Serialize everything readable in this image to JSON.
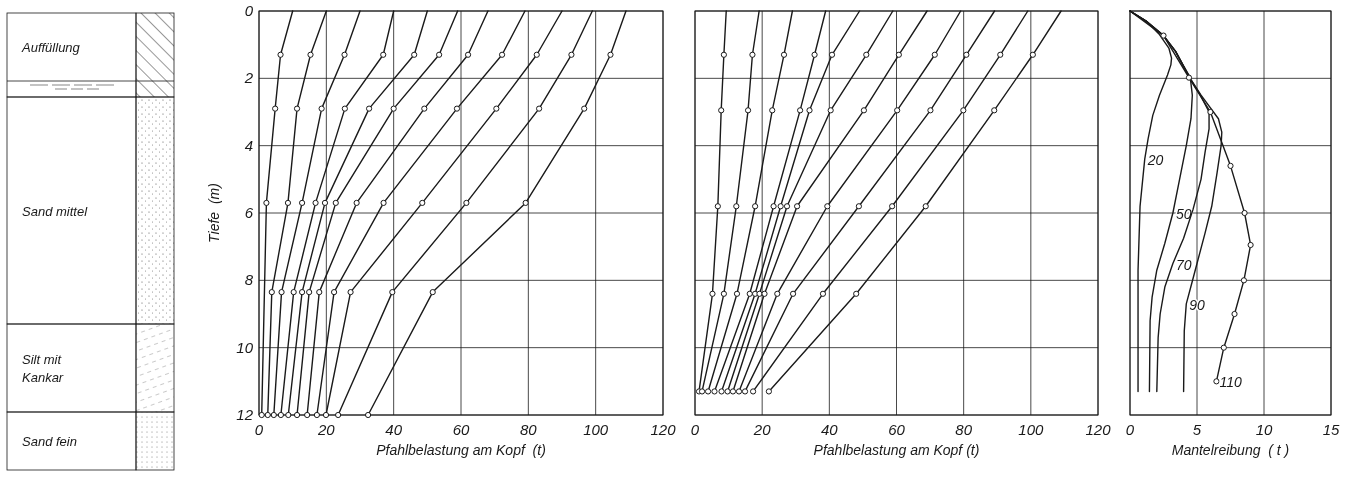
{
  "chart_data": [
    {
      "type": "other",
      "annotations": [
        "Auffüllung",
        "Sand mittel",
        "Silt mit Kankar",
        "Sand fein"
      ]
    },
    {
      "type": "line",
      "xlabel": "Pfahlbelastung am Kopf  (t)",
      "ylabel": "Tiefe  (m)",
      "xlim": [
        0,
        120
      ],
      "ylim": [
        12,
        0
      ],
      "xticks": [
        0,
        20,
        40,
        60,
        80,
        100,
        120
      ],
      "yticks": [
        0,
        2,
        4,
        6,
        8,
        10,
        12
      ],
      "grid": true,
      "marker": "circle",
      "series": [
        {
          "color": "#1a1a1a",
          "x": [
            10,
            6.4,
            4.8,
            2.2,
            0.8
          ],
          "values": [
            0,
            1.3,
            2.9,
            5.7,
            12
          ]
        },
        {
          "color": "#1a1a1a",
          "x": [
            20,
            15.3,
            11.3,
            8.6,
            3.8,
            2.6
          ],
          "values": [
            0,
            1.3,
            2.9,
            5.7,
            8.35,
            12
          ]
        },
        {
          "color": "#1a1a1a",
          "x": [
            30,
            25.4,
            18.6,
            12.8,
            6.7,
            4.4
          ],
          "values": [
            0,
            1.3,
            2.9,
            5.7,
            8.35,
            12
          ]
        },
        {
          "color": "#1a1a1a",
          "x": [
            40,
            36.9,
            25.5,
            16.8,
            10.3,
            6.5
          ],
          "values": [
            0,
            1.3,
            2.9,
            5.7,
            8.35,
            12
          ]
        },
        {
          "color": "#1a1a1a",
          "x": [
            50,
            46.1,
            32.7,
            19.6,
            12.8,
            8.7
          ],
          "values": [
            0,
            1.3,
            2.9,
            5.7,
            8.35,
            12
          ]
        },
        {
          "color": "#1a1a1a",
          "x": [
            59,
            53.5,
            40,
            22.8,
            14.9,
            11.3
          ],
          "values": [
            0,
            1.3,
            2.9,
            5.7,
            8.35,
            12
          ]
        },
        {
          "color": "#1a1a1a",
          "x": [
            68,
            62.1,
            49.1,
            29,
            17.9,
            14.3
          ],
          "values": [
            0,
            1.3,
            2.9,
            5.7,
            8.35,
            12
          ]
        },
        {
          "color": "#1a1a1a",
          "x": [
            79,
            72.2,
            58.8,
            37,
            22.3,
            17.2
          ],
          "values": [
            0,
            1.3,
            2.9,
            5.7,
            8.35,
            12
          ]
        },
        {
          "color": "#1a1a1a",
          "x": [
            90,
            82.5,
            70.5,
            48.5,
            27.2,
            19.9
          ],
          "values": [
            0,
            1.3,
            2.9,
            5.7,
            8.35,
            12
          ]
        },
        {
          "color": "#1a1a1a",
          "x": [
            99,
            92.8,
            83.2,
            61.6,
            39.6,
            23.5
          ],
          "values": [
            0,
            1.3,
            2.9,
            5.7,
            8.35,
            12
          ]
        },
        {
          "color": "#1a1a1a",
          "x": [
            109,
            104.4,
            96.6,
            79.2,
            51.6,
            32.4
          ],
          "values": [
            0,
            1.3,
            2.9,
            5.7,
            8.35,
            12
          ]
        }
      ]
    },
    {
      "type": "line",
      "xlabel": "Pfahlbelastung am Kopf (t)",
      "xlim": [
        0,
        120
      ],
      "ylim": [
        12,
        0
      ],
      "xticks": [
        0,
        20,
        40,
        60,
        80,
        100,
        120
      ],
      "yticks": [
        0,
        2,
        4,
        6,
        8,
        10,
        12
      ],
      "grid": true,
      "marker": "circle",
      "tick_labels": "x",
      "series": [
        {
          "color": "#1a1a1a",
          "x": [
            9.3,
            8.6,
            7.8,
            6.8,
            5.2,
            1.2
          ],
          "values": [
            0,
            1.3,
            2.95,
            5.8,
            8.4,
            11.3
          ]
        },
        {
          "color": "#1a1a1a",
          "x": [
            19.1,
            17.1,
            15.8,
            12.3,
            8.6,
            2.1
          ],
          "values": [
            0,
            1.3,
            2.95,
            5.8,
            8.4,
            11.3
          ]
        },
        {
          "color": "#1a1a1a",
          "x": [
            29,
            26.5,
            23,
            17.9,
            12.5,
            3.9
          ],
          "values": [
            0,
            1.3,
            2.95,
            5.8,
            8.4,
            11.3
          ]
        },
        {
          "color": "#1a1a1a",
          "x": [
            38.9,
            35.6,
            31.3,
            23.4,
            16.3,
            5.8
          ],
          "values": [
            0,
            1.3,
            2.95,
            5.8,
            8.4,
            11.3
          ]
        },
        {
          "color": "#1a1a1a",
          "x": [
            49,
            40.8,
            34.1,
            25.5,
            17.9,
            7.9
          ],
          "values": [
            0,
            1.3,
            2.95,
            5.8,
            8.4,
            11.3
          ]
        },
        {
          "color": "#1a1a1a",
          "x": [
            58.9,
            51,
            40.4,
            27.4,
            19.2,
            9.7
          ],
          "values": [
            0,
            1.3,
            2.95,
            5.8,
            8.4,
            11.3
          ]
        },
        {
          "color": "#1a1a1a",
          "x": [
            69.1,
            60.7,
            50.3,
            30.4,
            20.7,
            11.3
          ],
          "values": [
            0,
            1.3,
            2.95,
            5.8,
            8.4,
            11.3
          ]
        },
        {
          "color": "#1a1a1a",
          "x": [
            79.1,
            71.4,
            60.2,
            39.4,
            24.5,
            13.1
          ],
          "values": [
            0,
            1.3,
            2.95,
            5.8,
            8.4,
            11.3
          ]
        },
        {
          "color": "#1a1a1a",
          "x": [
            89.2,
            80.8,
            70.1,
            48.8,
            29.2,
            14.9
          ],
          "values": [
            0,
            1.3,
            2.95,
            5.8,
            8.4,
            11.3
          ]
        },
        {
          "color": "#1a1a1a",
          "x": [
            99.1,
            90.9,
            79.9,
            58.7,
            38.1,
            17.3
          ],
          "values": [
            0,
            1.3,
            2.95,
            5.8,
            8.4,
            11.3
          ]
        },
        {
          "color": "#1a1a1a",
          "x": [
            109,
            100.6,
            89.1,
            68.7,
            48,
            22
          ],
          "values": [
            0,
            1.3,
            2.95,
            5.8,
            8.4,
            11.3
          ]
        }
      ]
    },
    {
      "type": "line",
      "xlabel": "Mantelreibung  ( t )",
      "xlim": [
        0,
        15
      ],
      "ylim": [
        12,
        0
      ],
      "xticks": [
        0,
        5,
        10,
        15
      ],
      "yticks": [
        0,
        2,
        4,
        6,
        8,
        10,
        12
      ],
      "grid": true,
      "marker": "none",
      "tick_labels": "x",
      "series": [
        {
          "name": "20",
          "color": "#1a1a1a",
          "x": [
            0,
            1.2,
            2.2,
            2.9,
            3.1,
            3.05,
            2.8,
            2.2,
            1.7,
            1.35,
            1.1,
            0.75,
            0.6,
            0.6
          ],
          "values": [
            0,
            0.3,
            0.7,
            1.1,
            1.4,
            1.6,
            1.9,
            2.5,
            3.1,
            3.8,
            4.4,
            5.8,
            7.7,
            11.3
          ]
        },
        {
          "name": "50",
          "color": "#1a1a1a",
          "x": [
            0,
            1.2,
            2.5,
            3.4,
            3.95,
            4.5,
            4.65,
            4.55,
            4.2,
            3.7,
            3.2,
            2.6,
            2,
            1.65,
            1.5,
            1.45
          ],
          "values": [
            0,
            0.3,
            0.73,
            1.2,
            1.6,
            1.98,
            2.5,
            3.2,
            4,
            5,
            6,
            6.9,
            7.7,
            8.5,
            9.2,
            11.3
          ]
        },
        {
          "name": "70",
          "color": "#1a1a1a",
          "x": [
            0,
            1.2,
            2.5,
            3.4,
            4.45,
            5.25,
            5.9,
            5.9,
            5.6,
            5.3,
            4.7,
            4,
            3.2,
            2.6,
            2.25,
            2.1,
            2
          ],
          "values": [
            0,
            0.3,
            0.73,
            1.2,
            1.98,
            2.5,
            3,
            3.5,
            4.2,
            5,
            5.9,
            6.75,
            7.5,
            8.2,
            9,
            9.7,
            11.3
          ]
        },
        {
          "name": "90",
          "color": "#1a1a1a",
          "x": [
            0,
            1.2,
            2.5,
            3.4,
            4.45,
            5.3,
            6.6,
            6.85,
            6.8,
            6.5,
            6.1,
            5.6,
            5,
            4.6,
            4.2,
            4.05,
            4
          ],
          "values": [
            0,
            0.3,
            0.73,
            1.2,
            1.98,
            2.5,
            3.2,
            3.6,
            4,
            4.8,
            5.8,
            6.6,
            7.5,
            8.1,
            8.7,
            9.5,
            11.3
          ]
        },
        {
          "name": "110",
          "color": "#1a1a1a",
          "marker": "circle",
          "x": [
            0,
            2.5,
            4.4,
            6,
            7.5,
            8.55,
            9,
            8.5,
            7.8,
            7,
            6.45
          ],
          "values": [
            0,
            0.73,
            1.98,
            3,
            4.6,
            6,
            6.95,
            8,
            9,
            10,
            11
          ]
        }
      ]
    }
  ]
}
